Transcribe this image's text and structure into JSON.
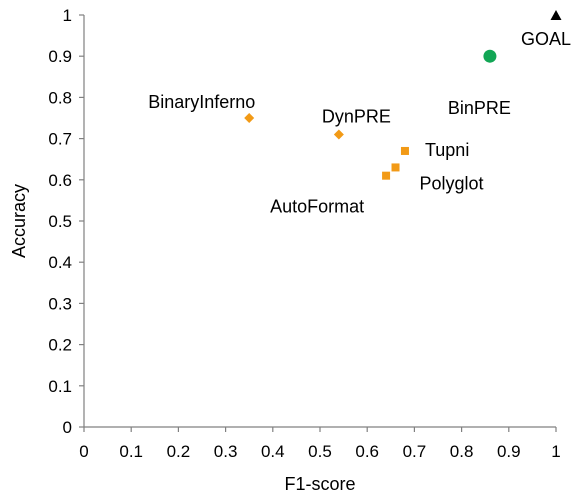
{
  "chart_data": {
    "type": "scatter",
    "title": "",
    "xlabel": "F1-score",
    "ylabel": "Accuracy",
    "xlim": [
      0,
      1
    ],
    "ylim": [
      0,
      1
    ],
    "x_ticks": [
      "0",
      "0.1",
      "0.2",
      "0.3",
      "0.4",
      "0.5",
      "0.6",
      "0.7",
      "0.8",
      "0.9",
      "1"
    ],
    "y_ticks": [
      "0",
      "0.1",
      "0.2",
      "0.3",
      "0.4",
      "0.5",
      "0.6",
      "0.7",
      "0.8",
      "0.9",
      "1"
    ],
    "grid": false,
    "legend": "none",
    "points": [
      {
        "label": "GOAL",
        "x": 1.0,
        "y": 1.0,
        "marker": "triangle",
        "color": "#000000"
      },
      {
        "label": "BinPRE",
        "x": 0.86,
        "y": 0.9,
        "marker": "circle",
        "color": "#12a655"
      },
      {
        "label": "BinaryInferno",
        "x": 0.35,
        "y": 0.75,
        "marker": "diamond",
        "color": "#f29a16"
      },
      {
        "label": "DynPRE",
        "x": 0.54,
        "y": 0.71,
        "marker": "diamond",
        "color": "#f29a16"
      },
      {
        "label": "Tupni",
        "x": 0.68,
        "y": 0.67,
        "marker": "square",
        "color": "#f29a16"
      },
      {
        "label": "Polyglot",
        "x": 0.66,
        "y": 0.63,
        "marker": "square",
        "color": "#f29a16"
      },
      {
        "label": "AutoFormat",
        "x": 0.64,
        "y": 0.61,
        "marker": "square",
        "color": "#f29a16"
      }
    ]
  }
}
